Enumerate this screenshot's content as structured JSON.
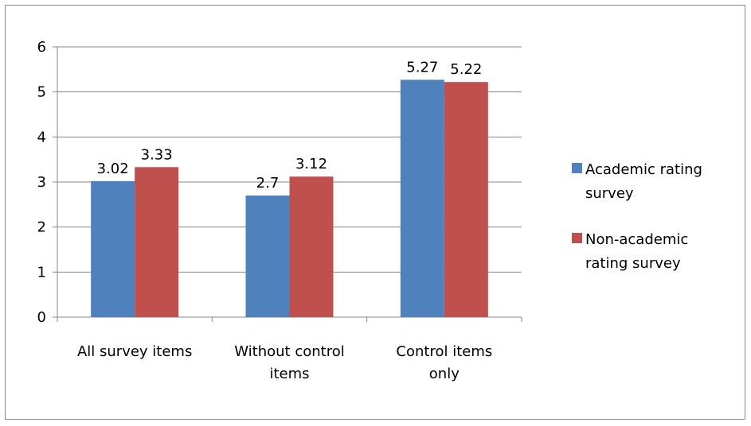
{
  "chart_data": {
    "type": "bar",
    "title": "",
    "xlabel": "",
    "ylabel": "",
    "ylim": [
      0,
      6
    ],
    "yticks": [
      "0",
      "1",
      "2",
      "3",
      "4",
      "5",
      "6"
    ],
    "grid": true,
    "legend_position": "right",
    "categories": [
      [
        "All survey items"
      ],
      [
        "Without control",
        "items"
      ],
      [
        "Control items",
        "only"
      ]
    ],
    "series": [
      {
        "name": "Academic rating survey",
        "legend_lines": [
          "Academic rating",
          "survey"
        ],
        "color": "#4f81bd",
        "values": [
          3.02,
          2.7,
          5.27
        ],
        "labels": [
          "3.02",
          "2.7",
          "5.27"
        ]
      },
      {
        "name": "Non-academic rating survey",
        "legend_lines": [
          "Non-academic",
          "rating survey"
        ],
        "color": "#c0504d",
        "values": [
          3.33,
          3.12,
          5.22
        ],
        "labels": [
          "3.33",
          "3.12",
          "5.22"
        ]
      }
    ]
  }
}
